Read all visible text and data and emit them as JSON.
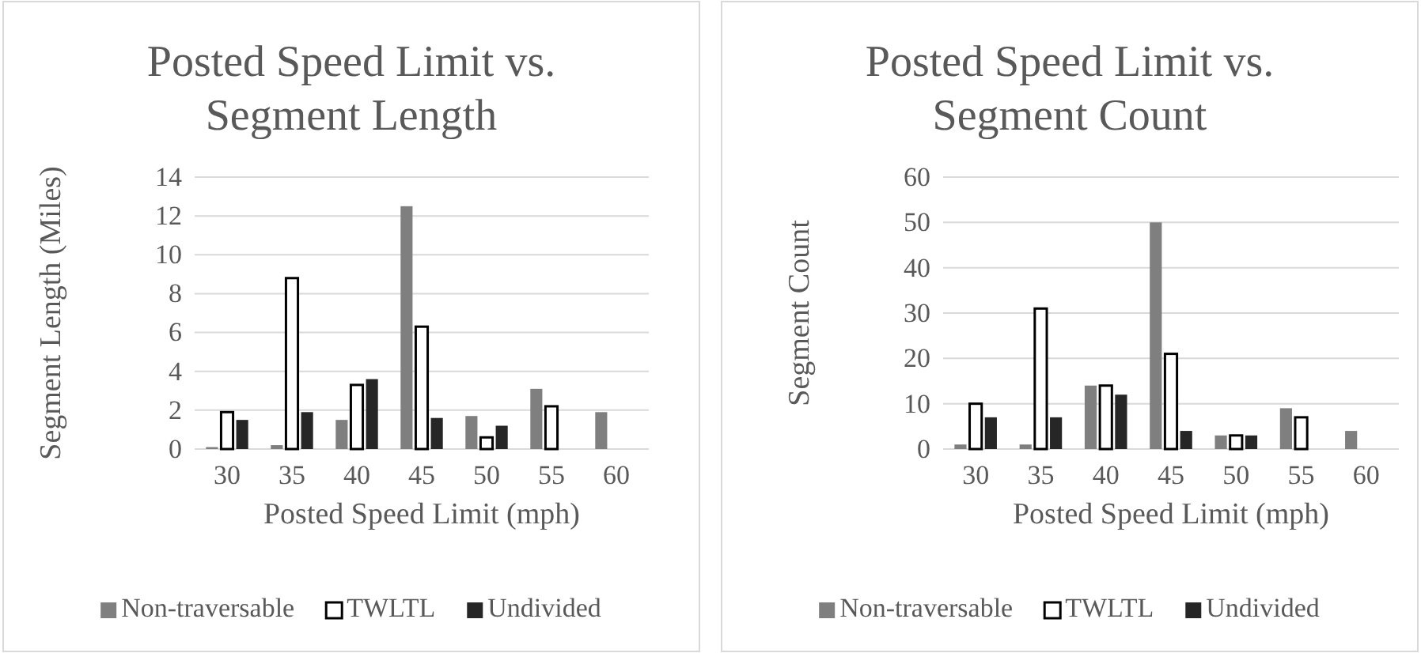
{
  "chart_data": [
    {
      "type": "bar",
      "title": "Posted Speed Limit vs. Segment Length",
      "xlabel": "Posted Speed Limit (mph)",
      "ylabel": "Segment Length (Miles)",
      "categories": [
        "30",
        "35",
        "40",
        "45",
        "50",
        "55",
        "60"
      ],
      "series": [
        {
          "name": "Non-traversable",
          "color": "#7f7f7f",
          "values": [
            0.1,
            0.2,
            1.5,
            12.5,
            1.7,
            3.1,
            1.9
          ]
        },
        {
          "name": "TWLTL",
          "color": "#ffffff",
          "values": [
            1.9,
            8.8,
            3.3,
            6.3,
            0.6,
            2.2,
            0
          ]
        },
        {
          "name": "Undivided",
          "color": "#262626",
          "values": [
            1.5,
            1.9,
            3.6,
            1.6,
            1.2,
            0,
            0
          ]
        }
      ],
      "ylim": [
        0,
        14
      ],
      "yticks": [
        0,
        2,
        4,
        6,
        8,
        10,
        12,
        14
      ],
      "grid": "y",
      "legend": "bottom"
    },
    {
      "type": "bar",
      "title": "Posted Speed Limit vs. Segment Count",
      "xlabel": "Posted Speed Limit (mph)",
      "ylabel": "Segment Count",
      "categories": [
        "30",
        "35",
        "40",
        "45",
        "50",
        "55",
        "60"
      ],
      "series": [
        {
          "name": "Non-traversable",
          "color": "#7f7f7f",
          "values": [
            1,
            1,
            14,
            50,
            3,
            9,
            4
          ]
        },
        {
          "name": "TWLTL",
          "color": "#ffffff",
          "values": [
            10,
            31,
            14,
            21,
            3,
            7,
            0
          ]
        },
        {
          "name": "Undivided",
          "color": "#262626",
          "values": [
            7,
            7,
            12,
            4,
            3,
            0,
            0
          ]
        }
      ],
      "ylim": [
        0,
        60
      ],
      "yticks": [
        0,
        10,
        20,
        30,
        40,
        50,
        60
      ],
      "grid": "y",
      "legend": "bottom"
    }
  ]
}
